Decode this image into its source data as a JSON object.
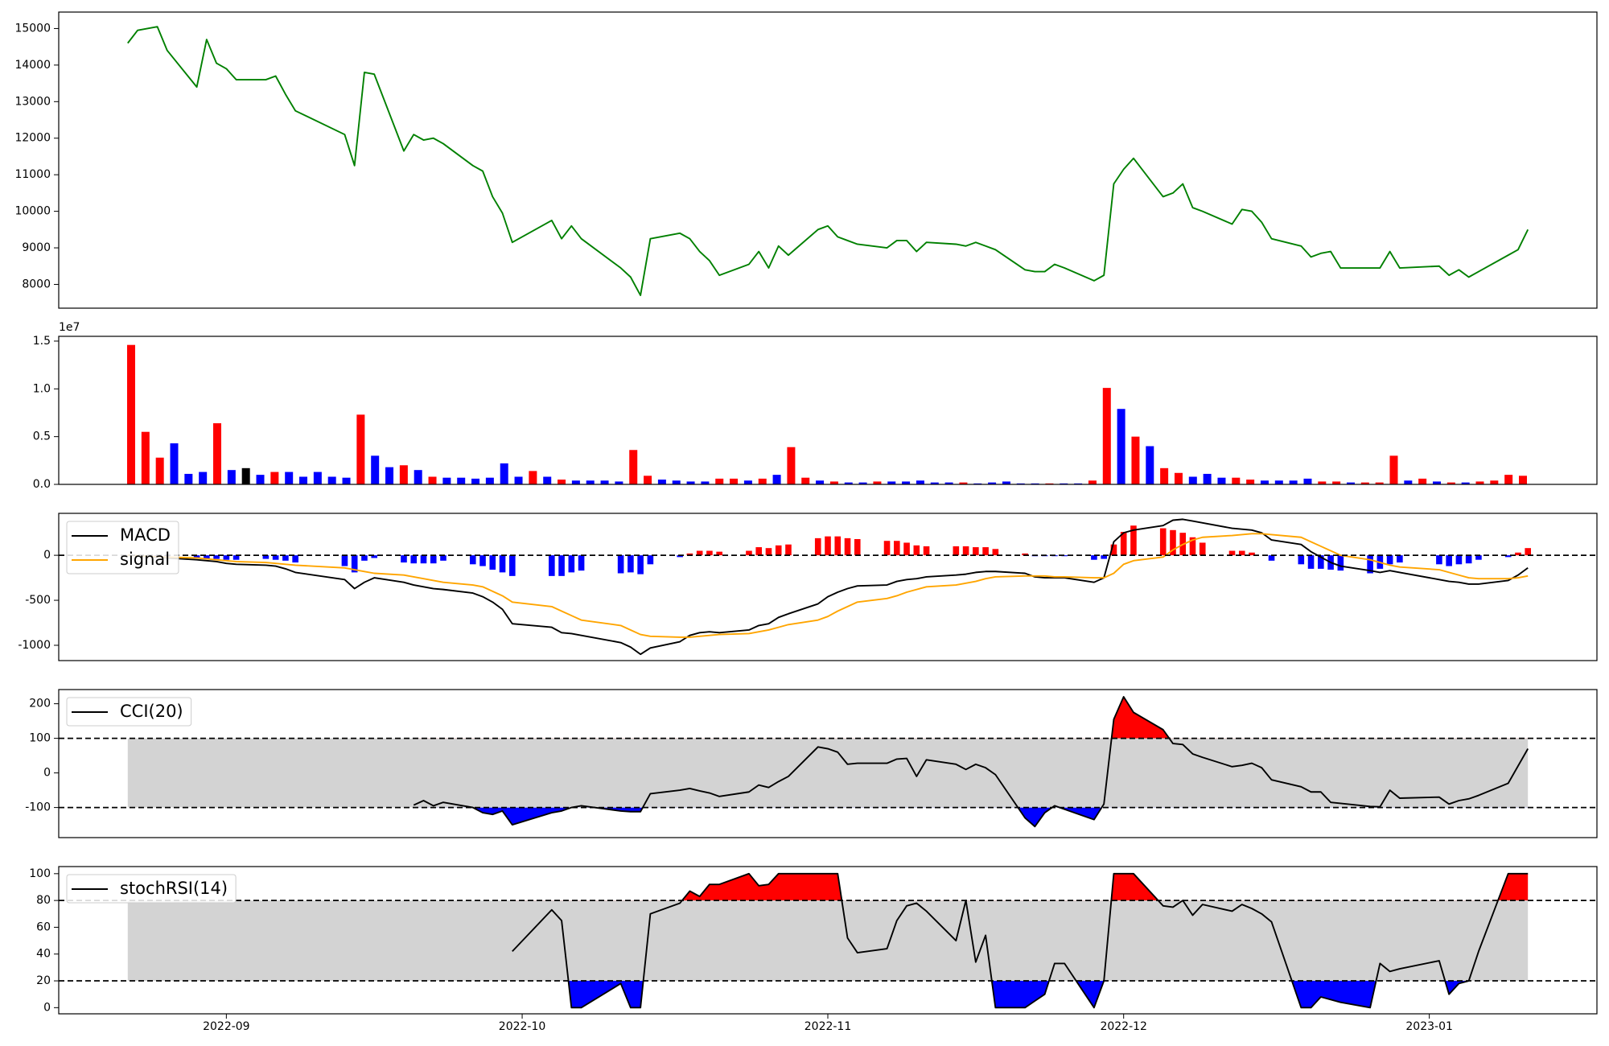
{
  "chart_data": [
    {
      "type": "line",
      "color": "green",
      "ylim": [
        7350,
        15450
      ],
      "yticks": [
        8000,
        9000,
        10000,
        11000,
        12000,
        13000,
        14000,
        15000
      ],
      "values": [
        14600,
        14950,
        15000,
        15050,
        14400,
        13400,
        14700,
        14050,
        13900,
        13600,
        13600,
        13700,
        13200,
        12750,
        12100,
        11250,
        13800,
        13750,
        11650,
        12100,
        11950,
        12000,
        11850,
        11250,
        11100,
        10400,
        9950,
        9150,
        9750,
        9250,
        9600,
        9250,
        8450,
        8200,
        7700,
        9250,
        9400,
        9250,
        8900,
        8650,
        8250,
        8550,
        8900,
        8450,
        9050,
        8800,
        9500,
        9600,
        9300,
        9200,
        9100,
        9000,
        9200,
        9200,
        8900,
        9150,
        9100,
        9050,
        9150,
        9050,
        8950,
        8400,
        8350,
        8350,
        8550,
        8450,
        8100,
        8250,
        10750,
        11150,
        11450,
        10400,
        10500,
        10750,
        10100,
        10000,
        9650,
        10050,
        10000,
        9700,
        9250,
        9050,
        8750,
        8850,
        8900,
        8450,
        8450,
        8450,
        8900,
        8450,
        8500,
        8250,
        8400,
        8200,
        8350,
        8800,
        8950,
        9500
      ]
    },
    {
      "type": "bar",
      "ylim": [
        0,
        15500000
      ],
      "offset_text": "1e7",
      "yticks": [
        {
          "value": 0,
          "label": "0.0"
        },
        {
          "value": 5000000,
          "label": "0.5"
        },
        {
          "value": 10000000,
          "label": "1.0"
        },
        {
          "value": 15000000,
          "label": "1.5"
        }
      ],
      "values": [
        14600000,
        5500000,
        2800000,
        4300000,
        1100000,
        1300000,
        6400000,
        1500000,
        1700000,
        1000000,
        1300000,
        1300000,
        800000,
        1300000,
        800000,
        700000,
        7300000,
        3000000,
        1800000,
        2000000,
        1500000,
        800000,
        700000,
        700000,
        600000,
        700000,
        2200000,
        800000,
        1400000,
        800000,
        500000,
        400000,
        400000,
        400000,
        300000,
        3600000,
        900000,
        500000,
        400000,
        300000,
        300000,
        600000,
        600000,
        400000,
        600000,
        1000000,
        3900000,
        700000,
        400000,
        300000,
        200000,
        200000,
        300000,
        300000,
        300000,
        400000,
        200000,
        200000,
        200000,
        100000,
        200000,
        300000,
        100000,
        100000,
        100000,
        100000,
        100000,
        400000,
        10100000,
        7900000,
        5000000,
        4000000,
        1700000,
        1200000,
        800000,
        1100000,
        700000,
        700000,
        500000,
        400000,
        400000,
        400000,
        600000,
        300000,
        300000,
        200000,
        200000,
        200000,
        3000000,
        400000,
        600000,
        300000,
        200000,
        200000,
        300000,
        400000,
        1000000,
        900000
      ],
      "colors": [
        "red",
        "red",
        "red",
        "blue",
        "blue",
        "blue",
        "red",
        "blue",
        "black",
        "blue",
        "red",
        "blue",
        "blue",
        "blue",
        "blue",
        "blue",
        "red",
        "blue",
        "blue",
        "red",
        "blue",
        "red",
        "blue",
        "blue",
        "blue",
        "blue",
        "blue",
        "blue",
        "red",
        "blue",
        "red",
        "blue",
        "blue",
        "blue",
        "blue",
        "red",
        "red",
        "blue",
        "blue",
        "blue",
        "blue",
        "red",
        "red",
        "blue",
        "red",
        "blue",
        "red",
        "red",
        "blue",
        "red",
        "blue",
        "blue",
        "red",
        "blue",
        "blue",
        "blue",
        "blue",
        "blue",
        "red",
        "blue",
        "blue",
        "blue",
        "blue",
        "blue",
        "red",
        "blue",
        "blue",
        "red",
        "red",
        "blue",
        "red",
        "blue",
        "red",
        "red",
        "blue",
        "blue",
        "blue",
        "red",
        "red",
        "blue",
        "blue",
        "blue",
        "blue",
        "red",
        "red",
        "blue",
        "red",
        "red",
        "red",
        "blue",
        "red",
        "blue",
        "red",
        "blue",
        "red",
        "red",
        "red",
        "red"
      ]
    },
    {
      "type": "macd",
      "ylim": [
        -1170,
        466
      ],
      "yticks": [
        -1000,
        -500,
        0
      ],
      "levels": [
        0
      ],
      "legend": "upper left",
      "series": [
        {
          "name": "MACD",
          "color": "black",
          "values": [
            0,
            -5,
            -10,
            -20,
            -30,
            -50,
            -60,
            -70,
            -90,
            -100,
            -110,
            -120,
            -150,
            -190,
            -270,
            -370,
            -300,
            -250,
            -300,
            -330,
            -350,
            -370,
            -380,
            -420,
            -460,
            -520,
            -600,
            -760,
            -800,
            -860,
            -870,
            -890,
            -970,
            -1020,
            -1100,
            -1030,
            -960,
            -890,
            -860,
            -850,
            -860,
            -830,
            -780,
            -760,
            -690,
            -650,
            -540,
            -460,
            -410,
            -370,
            -340,
            -330,
            -290,
            -270,
            -260,
            -240,
            -220,
            -210,
            -190,
            -180,
            -180,
            -200,
            -240,
            -250,
            -250,
            -250,
            -300,
            -250,
            150,
            250,
            280,
            330,
            390,
            400,
            380,
            360,
            300,
            290,
            280,
            250,
            170,
            120,
            40,
            -20,
            -80,
            -120,
            -170,
            -190,
            -170,
            -190,
            -270,
            -290,
            -300,
            -320,
            -320,
            -280,
            -220,
            -140
          ]
        },
        {
          "name": "signal",
          "color": "orange",
          "values": [
            0,
            -5,
            -10,
            -15,
            -20,
            -30,
            -40,
            -50,
            -60,
            -70,
            -80,
            -90,
            -100,
            -110,
            -140,
            -160,
            -180,
            -200,
            -220,
            -240,
            -260,
            -280,
            -300,
            -330,
            -350,
            -400,
            -450,
            -520,
            -570,
            -620,
            -670,
            -720,
            -780,
            -830,
            -880,
            -900,
            -910,
            -910,
            -900,
            -890,
            -880,
            -870,
            -850,
            -830,
            -800,
            -770,
            -720,
            -680,
            -620,
            -570,
            -520,
            -480,
            -450,
            -410,
            -380,
            -350,
            -330,
            -310,
            -290,
            -260,
            -240,
            -230,
            -230,
            -230,
            -240,
            -240,
            -250,
            -250,
            -200,
            -100,
            -60,
            -20,
            60,
            120,
            170,
            200,
            220,
            230,
            240,
            240,
            230,
            200,
            150,
            100,
            50,
            0,
            -50,
            -80,
            -110,
            -130,
            -160,
            -190,
            -220,
            -250,
            -260,
            -260,
            -250,
            -230
          ]
        }
      ],
      "histogram": {
        "positive_color": "red",
        "negative_color": "blue",
        "values": [
          0,
          -10,
          -20,
          -30,
          -30,
          -30,
          -40,
          -40,
          -50,
          -50,
          -40,
          -50,
          -60,
          -80,
          -120,
          -190,
          -60,
          -30,
          -80,
          -90,
          -90,
          -90,
          -60,
          -100,
          -120,
          -160,
          -190,
          -230,
          -230,
          -230,
          -190,
          -170,
          -200,
          -190,
          -210,
          -100,
          -20,
          20,
          50,
          50,
          40,
          50,
          90,
          80,
          110,
          120,
          190,
          210,
          210,
          190,
          180,
          160,
          160,
          140,
          110,
          100,
          100,
          100,
          90,
          90,
          70,
          20,
          -10,
          -10,
          -10,
          -10,
          -50,
          -40,
          120,
          260,
          330,
          300,
          280,
          250,
          200,
          140,
          50,
          50,
          30,
          0,
          -60,
          -100,
          -150,
          -150,
          -160,
          -170,
          -200,
          -150,
          -100,
          -80,
          -100,
          -120,
          -100,
          -90,
          -50,
          -20,
          30,
          80
        ]
      }
    },
    {
      "type": "oscillator",
      "ylim": [
        -187,
        241
      ],
      "yticks": [
        -100,
        0,
        100,
        200
      ],
      "levels": [
        100,
        -100
      ],
      "band_color": "lightgray",
      "upper_color": "red",
      "lower_color": "blue",
      "legend": "upper left",
      "series": [
        {
          "name": "CCI(20)",
          "color": "black",
          "values": [
            null,
            null,
            null,
            null,
            null,
            null,
            null,
            null,
            null,
            null,
            null,
            null,
            null,
            null,
            null,
            null,
            null,
            null,
            null,
            -93,
            -80,
            -95,
            -85,
            -100,
            -115,
            -120,
            -110,
            -150,
            -115,
            -110,
            -100,
            -95,
            -110,
            -112,
            -112,
            -60,
            -50,
            -45,
            -52,
            -58,
            -68,
            -55,
            -35,
            -42,
            -25,
            -10,
            75,
            70,
            60,
            25,
            28,
            28,
            40,
            42,
            -10,
            38,
            25,
            10,
            25,
            15,
            -5,
            -130,
            -155,
            -115,
            -95,
            -105,
            -135,
            -90,
            155,
            220,
            175,
            125,
            85,
            82,
            55,
            45,
            18,
            22,
            28,
            15,
            -20,
            -40,
            -55,
            -55,
            -85,
            -88,
            -97,
            -98,
            -50,
            -73,
            -70,
            -90,
            -80,
            -75,
            -65,
            -30,
            20,
            70
          ]
        }
      ]
    },
    {
      "type": "oscillator",
      "ylim": [
        -4.6,
        105.3
      ],
      "yticks": [
        0,
        20,
        40,
        60,
        80,
        100
      ],
      "levels": [
        80,
        20
      ],
      "band_color": "lightgray",
      "upper_color": "red",
      "lower_color": "blue",
      "legend": "upper left",
      "series": [
        {
          "name": "stochRSI(14)",
          "color": "black",
          "values": [
            null,
            null,
            null,
            null,
            null,
            null,
            null,
            null,
            null,
            null,
            null,
            null,
            null,
            null,
            null,
            null,
            null,
            null,
            null,
            null,
            null,
            null,
            null,
            null,
            null,
            null,
            null,
            42,
            73,
            65,
            0,
            0,
            18,
            0,
            0,
            70,
            78,
            87,
            83,
            92,
            92,
            100,
            91,
            92,
            100,
            100,
            100,
            100,
            100,
            52,
            41,
            44,
            65,
            76,
            78,
            72,
            50,
            80,
            34,
            54,
            0,
            0,
            5,
            10,
            33,
            33,
            0,
            20,
            100,
            100,
            100,
            76,
            75,
            80,
            69,
            77,
            72,
            77,
            74,
            70,
            64,
            0,
            0,
            8,
            6,
            4,
            0,
            33,
            27,
            29,
            35,
            10,
            18,
            20,
            42,
            100,
            100,
            100
          ]
        }
      ],
      "xlim": [
        0,
        156
      ],
      "xticks": [
        {
          "value": 17,
          "label": "2022-09"
        },
        {
          "value": 47,
          "label": "2022-10"
        },
        {
          "value": 78,
          "label": "2022-11"
        },
        {
          "value": 108,
          "label": "2022-12"
        },
        {
          "value": 139,
          "label": "2023-01"
        }
      ],
      "x": [
        7,
        8,
        9,
        10,
        11,
        14,
        15,
        16,
        17,
        18,
        21,
        22,
        23,
        24,
        29,
        30,
        31,
        32,
        35,
        36,
        37,
        38,
        39,
        42,
        43,
        44,
        45,
        46,
        50,
        51,
        52,
        53,
        57,
        58,
        59,
        60,
        63,
        64,
        65,
        66,
        67,
        70,
        71,
        72,
        73,
        74,
        77,
        78,
        79,
        80,
        81,
        84,
        85,
        86,
        87,
        88,
        91,
        92,
        93,
        94,
        95,
        98,
        99,
        100,
        101,
        102,
        105,
        106,
        107,
        108,
        109,
        112,
        113,
        114,
        115,
        116,
        119,
        120,
        121,
        122,
        123,
        126,
        127,
        128,
        129,
        130,
        133,
        134,
        135,
        136,
        140,
        141,
        142,
        143,
        144,
        147,
        148,
        149
      ]
    }
  ]
}
